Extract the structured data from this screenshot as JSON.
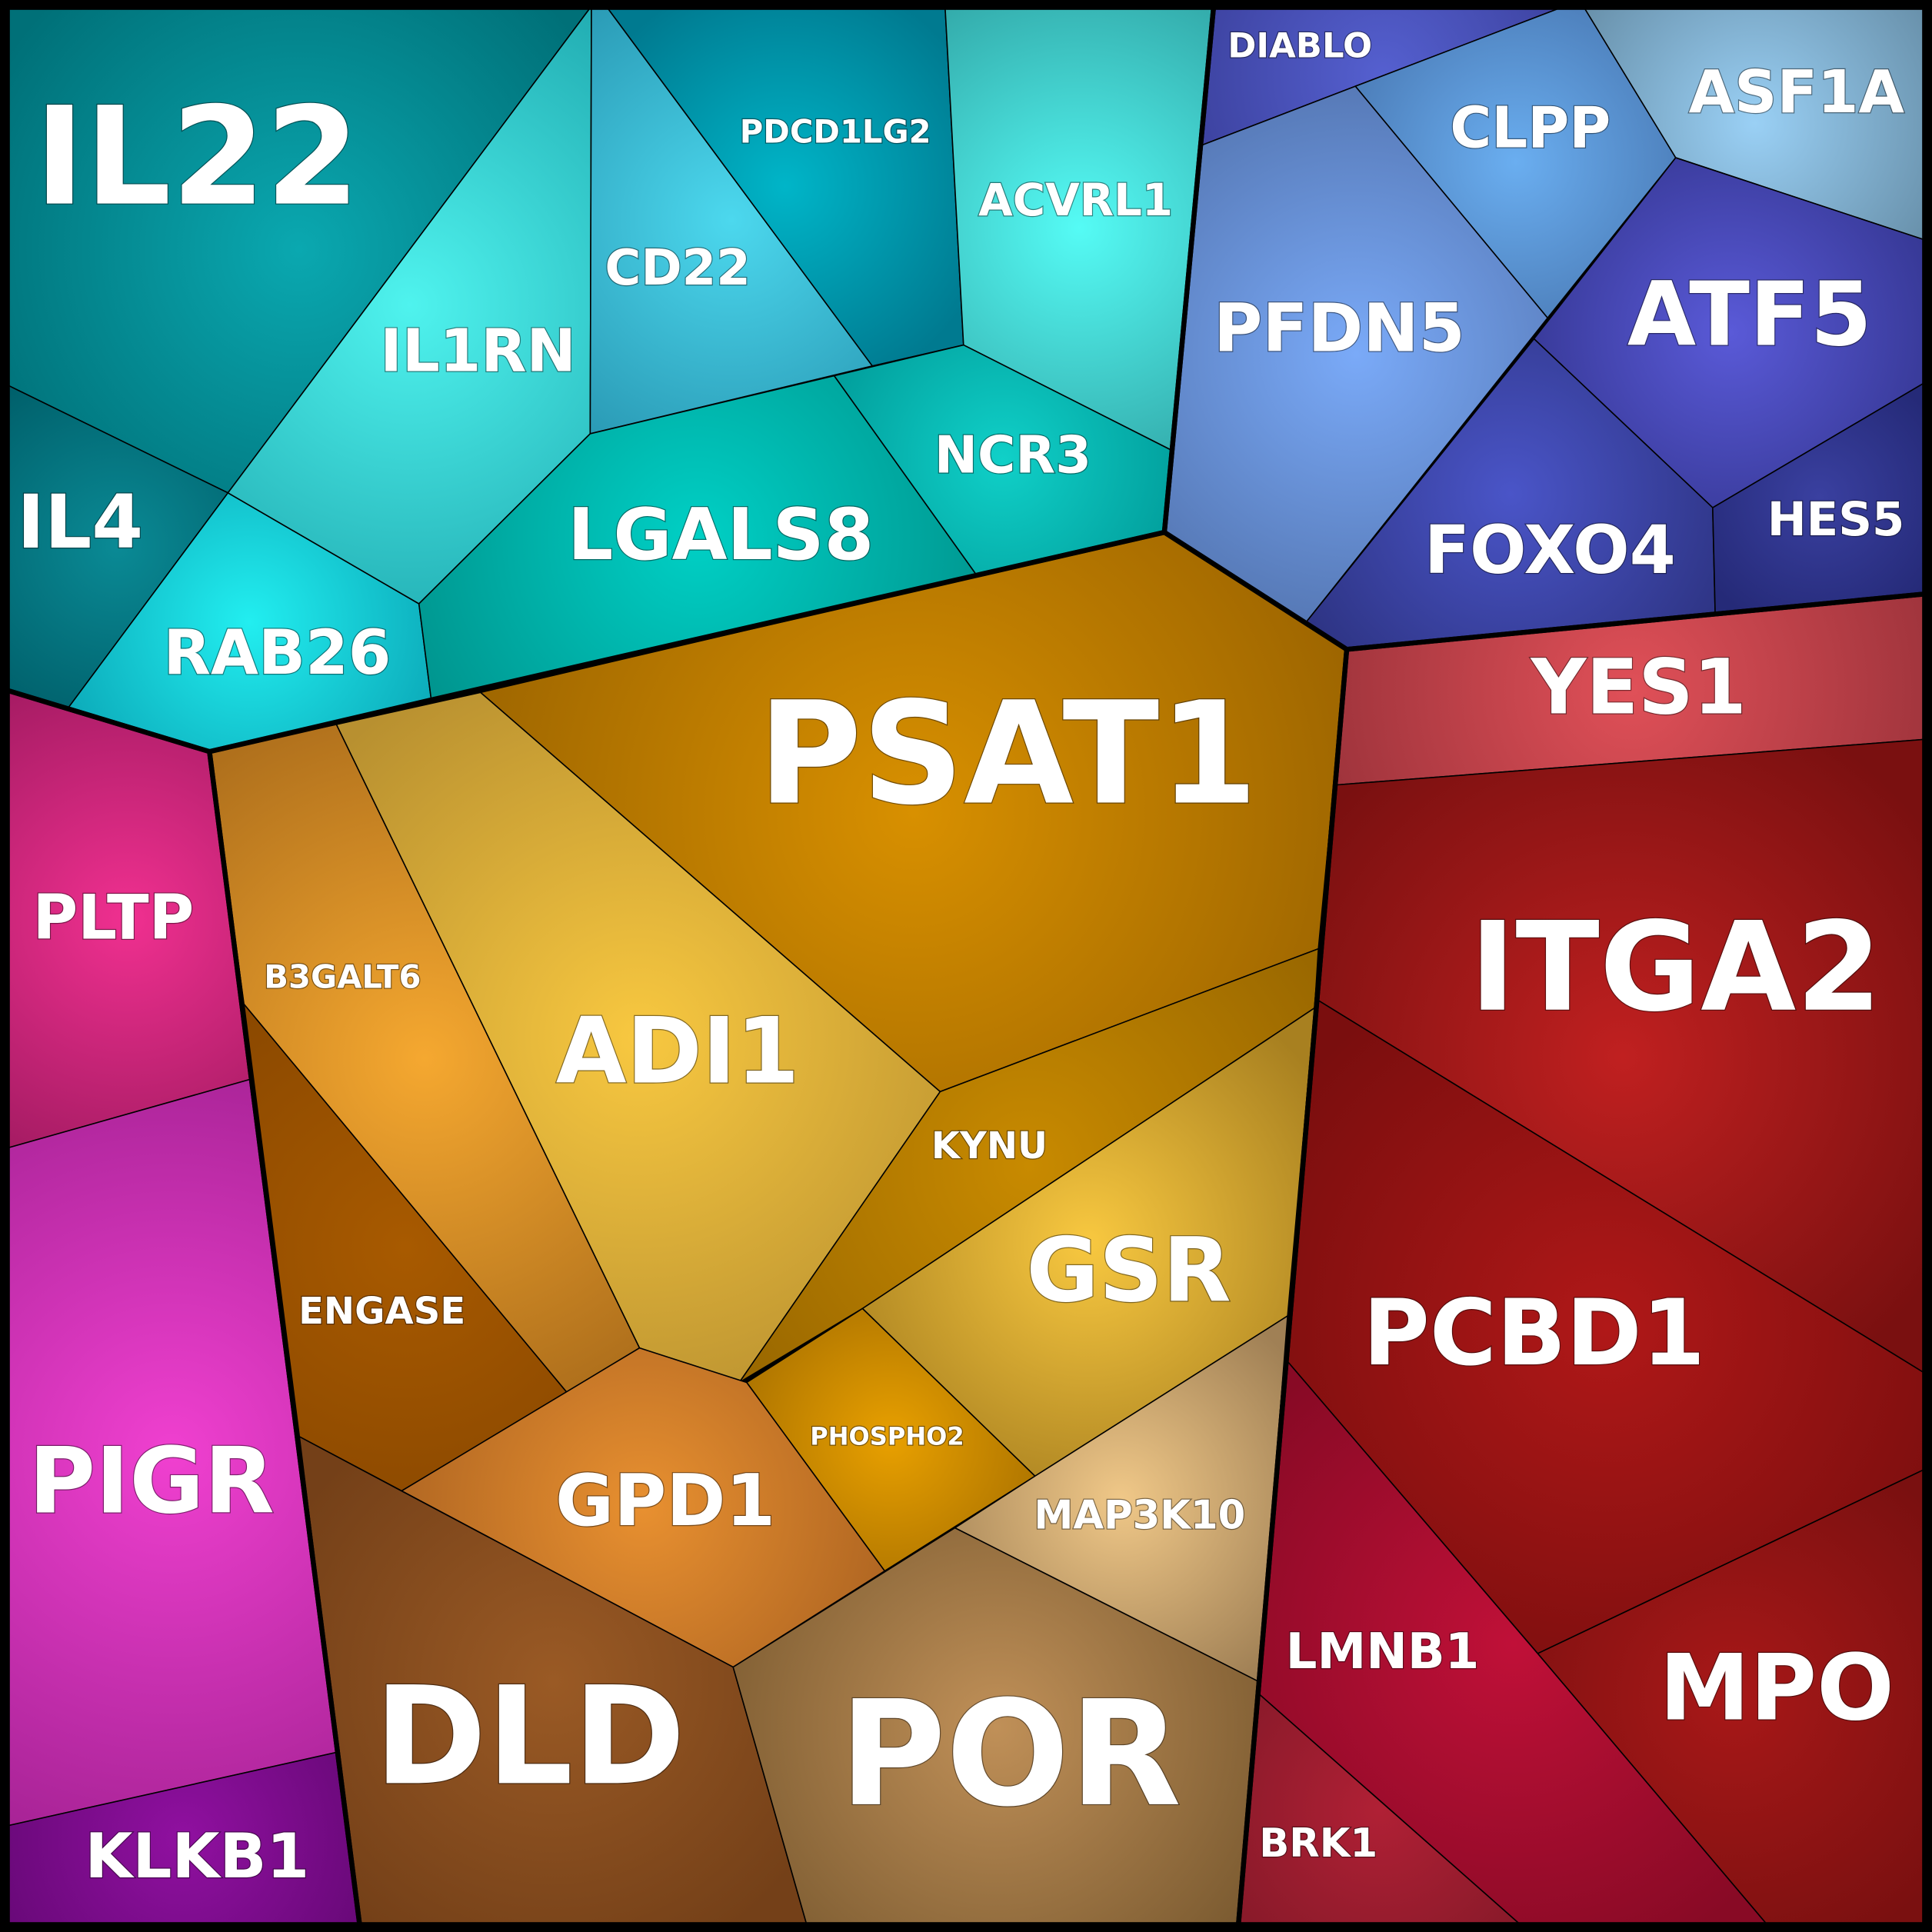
{
  "cells": [
    {
      "label": "IL22"
    },
    {
      "label": "IL4"
    },
    {
      "label": "RAB26"
    },
    {
      "label": "IL1RN"
    },
    {
      "label": "CD22"
    },
    {
      "label": "PDCD1LG2"
    },
    {
      "label": "ACVRL1"
    },
    {
      "label": "NCR3"
    },
    {
      "label": "LGALS8"
    },
    {
      "label": "DIABLO"
    },
    {
      "label": "CLPP"
    },
    {
      "label": "ASF1A"
    },
    {
      "label": "PFDN5"
    },
    {
      "label": "ATF5"
    },
    {
      "label": "FOXO4"
    },
    {
      "label": "HES5"
    },
    {
      "label": "YES1"
    },
    {
      "label": "ITGA2"
    },
    {
      "label": "PCBD1"
    },
    {
      "label": "MPO"
    },
    {
      "label": "LMNB1"
    },
    {
      "label": "BRK1"
    },
    {
      "label": "PLTP"
    },
    {
      "label": "PIGR"
    },
    {
      "label": "KLKB1"
    },
    {
      "label": "PSAT1"
    },
    {
      "label": "ADI1"
    },
    {
      "label": "B3GALT6"
    },
    {
      "label": "ENGASE"
    },
    {
      "label": "KYNU"
    },
    {
      "label": "GSR"
    },
    {
      "label": "PHOSPHO2"
    },
    {
      "label": "GPD1"
    },
    {
      "label": "MAP3K10"
    },
    {
      "label": "DLD"
    },
    {
      "label": "POR"
    }
  ]
}
